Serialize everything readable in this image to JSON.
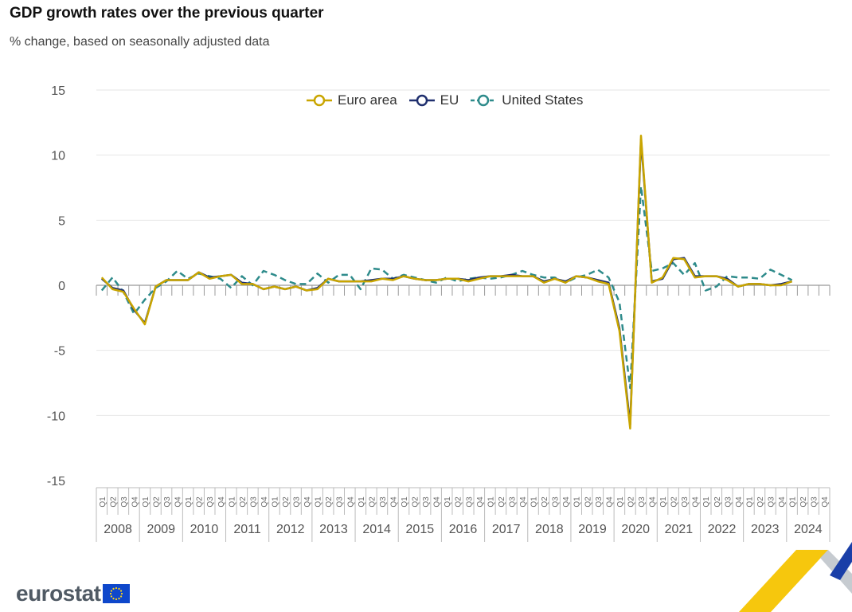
{
  "colors": {
    "euro_area": "#c9a500",
    "eu": "#1f2f6e",
    "us": "#2e8b8b"
  },
  "legend": {
    "items": [
      {
        "key": "euro_area",
        "label": "Euro area",
        "icon": "solid-line-circle-icon"
      },
      {
        "key": "eu",
        "label": "EU",
        "icon": "solid-line-circle-icon"
      },
      {
        "key": "us",
        "label": "United States",
        "icon": "dashed-line-circle-icon"
      }
    ]
  },
  "footer": {
    "logo_text": "eurostat",
    "flag_icon": "eu-flag-icon"
  },
  "chart_data": {
    "type": "line",
    "title": "GDP growth rates over the previous quarter",
    "subtitle": "% change, based on seasonally adjusted data",
    "xlabel": "",
    "ylabel": "",
    "ylim": [
      -15,
      15
    ],
    "yticks": [
      15,
      10,
      5,
      0,
      -5,
      -10,
      -15
    ],
    "grid": true,
    "legend_position": "top-center",
    "quarter_labels": [
      "Q1",
      "Q2",
      "Q3",
      "Q4"
    ],
    "years": [
      "2008",
      "2009",
      "2010",
      "2011",
      "2012",
      "2013",
      "2014",
      "2015",
      "2016",
      "2017",
      "2018",
      "2019",
      "2020",
      "2021",
      "2022",
      "2023",
      "2024"
    ],
    "series": [
      {
        "key": "euro_area",
        "name": "Euro area",
        "values": [
          0.6,
          -0.3,
          -0.5,
          -1.8,
          -3.0,
          -0.1,
          0.4,
          0.4,
          0.4,
          1.0,
          0.5,
          0.7,
          0.8,
          0.1,
          0.1,
          -0.3,
          -0.1,
          -0.3,
          -0.1,
          -0.4,
          -0.3,
          0.5,
          0.3,
          0.3,
          0.3,
          0.3,
          0.5,
          0.4,
          0.7,
          0.5,
          0.4,
          0.4,
          0.5,
          0.5,
          0.3,
          0.5,
          0.7,
          0.7,
          0.7,
          0.7,
          0.7,
          0.2,
          0.5,
          0.2,
          0.7,
          0.6,
          0.3,
          0.1,
          -3.5,
          -11.0,
          11.5,
          0.2,
          0.6,
          2.1,
          2.0,
          0.6,
          0.7,
          0.7,
          0.4,
          -0.1,
          0.1,
          0.1,
          0.0,
          0.0,
          0.3
        ]
      },
      {
        "key": "eu",
        "name": "EU",
        "values": [
          0.5,
          -0.2,
          -0.4,
          -1.9,
          -2.9,
          -0.1,
          0.4,
          0.4,
          0.4,
          1.0,
          0.6,
          0.7,
          0.8,
          0.2,
          0.1,
          -0.3,
          -0.1,
          -0.3,
          -0.1,
          -0.4,
          -0.2,
          0.5,
          0.3,
          0.3,
          0.3,
          0.4,
          0.5,
          0.5,
          0.7,
          0.5,
          0.4,
          0.4,
          0.5,
          0.5,
          0.4,
          0.6,
          0.7,
          0.7,
          0.8,
          0.7,
          0.7,
          0.3,
          0.5,
          0.3,
          0.7,
          0.6,
          0.4,
          0.2,
          -3.3,
          -10.7,
          11.2,
          0.3,
          0.5,
          2.0,
          2.1,
          0.7,
          0.7,
          0.7,
          0.5,
          -0.1,
          0.1,
          0.1,
          0.0,
          0.1,
          0.3
        ]
      },
      {
        "key": "us",
        "name": "United States",
        "dashed": true,
        "values": [
          -0.4,
          0.6,
          -0.5,
          -2.2,
          -1.1,
          -0.2,
          0.3,
          1.1,
          0.5,
          0.9,
          0.7,
          0.5,
          -0.2,
          0.7,
          0.0,
          1.1,
          0.8,
          0.4,
          0.1,
          0.1,
          0.9,
          0.2,
          0.8,
          0.8,
          -0.3,
          1.3,
          1.2,
          0.5,
          0.8,
          0.6,
          0.4,
          0.2,
          0.6,
          0.3,
          0.5,
          0.6,
          0.5,
          0.6,
          0.8,
          1.1,
          0.8,
          0.6,
          0.6,
          0.2,
          0.6,
          0.8,
          1.2,
          0.6,
          -1.3,
          -7.9,
          7.6,
          1.1,
          1.3,
          1.7,
          0.8,
          1.7,
          -0.4,
          -0.1,
          0.7,
          0.6,
          0.6,
          0.5,
          1.2,
          0.8,
          0.4
        ]
      }
    ]
  }
}
